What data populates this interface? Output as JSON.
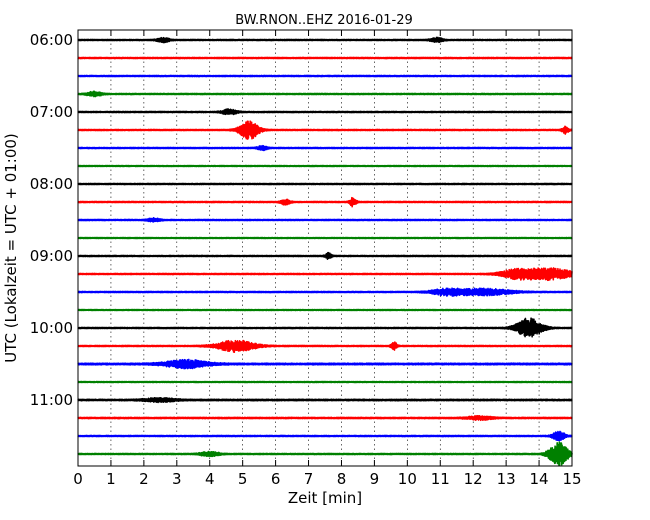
{
  "chart_data": {
    "type": "line",
    "title": "BW.RNON..EHZ 2016-01-29",
    "xlabel": "Zeit  [min]",
    "ylabel": "UTC (Lokalzeit = UTC + 01:00)",
    "xlim": [
      0,
      15
    ],
    "x_ticks": [
      "0",
      "1",
      "2",
      "3",
      "4",
      "5",
      "6",
      "7",
      "8",
      "9",
      "10",
      "11",
      "12",
      "13",
      "14",
      "15"
    ],
    "y_ticks": [
      {
        "trace": 0,
        "label": "06:00"
      },
      {
        "trace": 4,
        "label": "07:00"
      },
      {
        "trace": 8,
        "label": "08:00"
      },
      {
        "trace": 12,
        "label": "09:00"
      },
      {
        "trace": 16,
        "label": "10:00"
      },
      {
        "trace": 20,
        "label": "11:00"
      }
    ],
    "grid": true,
    "trace_interval_minutes": 15,
    "color_cycle": [
      "#000000",
      "#ff0000",
      "#0000ff",
      "#008000"
    ],
    "series": [
      {
        "start": "06:00",
        "noise": 0.3,
        "events": [
          {
            "t": 2.6,
            "amp": 1.2,
            "dur": 0.2
          },
          {
            "t": 10.9,
            "amp": 1.2,
            "dur": 0.2
          }
        ]
      },
      {
        "start": "06:15",
        "noise": 0.3,
        "events": []
      },
      {
        "start": "06:30",
        "noise": 0.3,
        "events": []
      },
      {
        "start": "06:45",
        "noise": 0.3,
        "events": [
          {
            "t": 0.5,
            "amp": 1.2,
            "dur": 0.25
          }
        ]
      },
      {
        "start": "07:00",
        "noise": 0.3,
        "events": [
          {
            "t": 4.6,
            "amp": 1.4,
            "dur": 0.25
          }
        ]
      },
      {
        "start": "07:15",
        "noise": 0.3,
        "events": [
          {
            "t": 5.2,
            "amp": 5.0,
            "dur": 0.3
          },
          {
            "t": 14.8,
            "amp": 2.0,
            "dur": 0.1
          }
        ]
      },
      {
        "start": "07:30",
        "noise": 0.3,
        "events": [
          {
            "t": 5.6,
            "amp": 1.2,
            "dur": 0.15
          }
        ]
      },
      {
        "start": "07:45",
        "noise": 0.25,
        "events": []
      },
      {
        "start": "08:00",
        "noise": 0.3,
        "events": []
      },
      {
        "start": "08:15",
        "noise": 0.3,
        "events": [
          {
            "t": 6.3,
            "amp": 1.5,
            "dur": 0.15
          },
          {
            "t": 8.35,
            "amp": 2.5,
            "dur": 0.1
          }
        ]
      },
      {
        "start": "08:30",
        "noise": 0.3,
        "events": [
          {
            "t": 2.3,
            "amp": 1.0,
            "dur": 0.2
          }
        ]
      },
      {
        "start": "08:45",
        "noise": 0.25,
        "events": []
      },
      {
        "start": "09:00",
        "noise": 0.3,
        "events": [
          {
            "t": 7.6,
            "amp": 1.6,
            "dur": 0.1
          }
        ]
      },
      {
        "start": "09:15",
        "noise": 0.3,
        "events": [
          {
            "t": 13.3,
            "amp": 2.2,
            "dur": 0.5
          },
          {
            "t": 14.3,
            "amp": 3.2,
            "dur": 0.8
          }
        ]
      },
      {
        "start": "09:30",
        "noise": 0.3,
        "events": [
          {
            "t": 11.2,
            "amp": 1.6,
            "dur": 0.5
          },
          {
            "t": 12.3,
            "amp": 1.8,
            "dur": 0.9
          }
        ]
      },
      {
        "start": "09:45",
        "noise": 0.25,
        "events": []
      },
      {
        "start": "10:00",
        "noise": 0.3,
        "events": [
          {
            "t": 13.7,
            "amp": 5.5,
            "dur": 0.4
          }
        ]
      },
      {
        "start": "10:15",
        "noise": 0.3,
        "events": [
          {
            "t": 4.8,
            "amp": 3.2,
            "dur": 0.6
          },
          {
            "t": 9.6,
            "amp": 2.0,
            "dur": 0.1
          }
        ]
      },
      {
        "start": "10:30",
        "noise": 0.45,
        "events": [
          {
            "t": 3.3,
            "amp": 2.2,
            "dur": 0.7
          }
        ]
      },
      {
        "start": "10:45",
        "noise": 0.25,
        "events": []
      },
      {
        "start": "11:00",
        "noise": 0.4,
        "events": [
          {
            "t": 2.5,
            "amp": 1.0,
            "dur": 0.5
          }
        ]
      },
      {
        "start": "11:15",
        "noise": 0.35,
        "events": [
          {
            "t": 12.2,
            "amp": 1.0,
            "dur": 0.4
          }
        ]
      },
      {
        "start": "11:30",
        "noise": 0.3,
        "events": [
          {
            "t": 14.6,
            "amp": 2.5,
            "dur": 0.2
          }
        ]
      },
      {
        "start": "11:45",
        "noise": 0.3,
        "events": [
          {
            "t": 4.0,
            "amp": 1.3,
            "dur": 0.3
          },
          {
            "t": 14.6,
            "amp": 6.5,
            "dur": 0.3
          }
        ]
      }
    ]
  }
}
